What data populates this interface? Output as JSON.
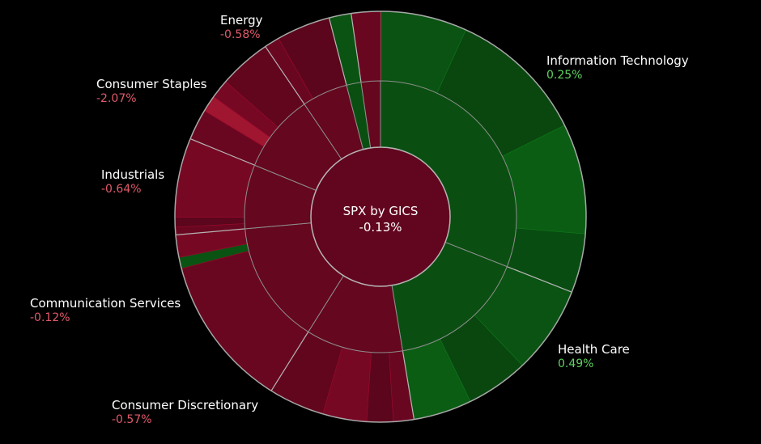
{
  "chart_data": {
    "type": "sunburst",
    "center": {
      "title": "SPX by GICS",
      "value": "-0.13%"
    },
    "colors": {
      "up": "#0a5312",
      "down": "#6a0720",
      "down_strong": "#a0152f",
      "center": "#62051f",
      "stroke": "#8e8e8e"
    },
    "sectors": [
      {
        "name": "Information Technology",
        "change": "0.25%",
        "direction": "up",
        "share": 28.5
      },
      {
        "name": "Health Care",
        "change": "0.49%",
        "direction": "up",
        "share": 15.1
      },
      {
        "name": "Consumer Discretionary",
        "change": "-0.57%",
        "direction": "down",
        "share": 10.6
      },
      {
        "name": "Communication Services",
        "change": "-0.12%",
        "direction": "down",
        "share": 13.5
      },
      {
        "name": "Industrials",
        "change": "-0.64%",
        "direction": "down",
        "share": 7.0
      },
      {
        "name": "Consumer Staples",
        "change": "-2.07%",
        "direction": "down",
        "share": 8.6
      },
      {
        "name": "Energy",
        "change": "-0.58%",
        "direction": "down",
        "share": 5.0
      },
      {
        "name": "",
        "change": "",
        "direction": "up",
        "share": 1.6
      },
      {
        "name": "",
        "change": "",
        "direction": "down",
        "share": 2.1
      }
    ]
  }
}
